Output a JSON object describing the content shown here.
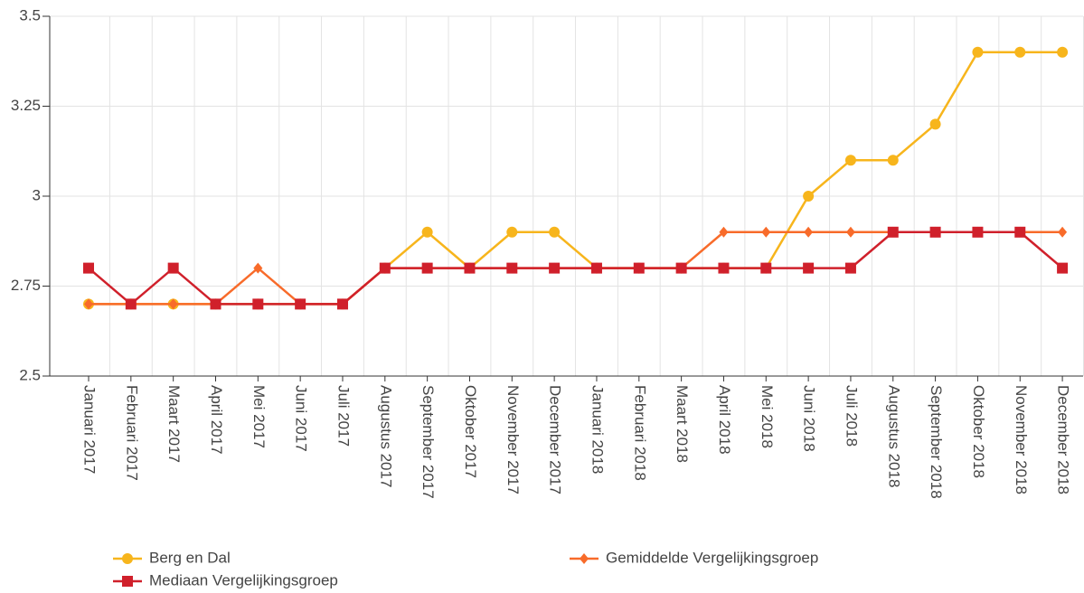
{
  "chart_data": {
    "type": "line",
    "categories": [
      "Januari 2017",
      "Februari 2017",
      "Maart 2017",
      "April 2017",
      "Mei 2017",
      "Juni 2017",
      "Juli 2017",
      "Augustus 2017",
      "September 2017",
      "Oktober 2017",
      "November 2017",
      "December 2017",
      "Januari 2018",
      "Februari 2018",
      "Maart 2018",
      "April 2018",
      "Mei 2018",
      "Juni 2018",
      "Juli 2018",
      "Augustus 2018",
      "September 2018",
      "Oktober 2018",
      "November 2018",
      "December 2018"
    ],
    "series": [
      {
        "name": "Berg en Dal",
        "color": "#f7b51c",
        "marker": "circle",
        "values": [
          2.7,
          2.7,
          2.7,
          2.7,
          2.7,
          2.7,
          2.7,
          2.8,
          2.9,
          2.8,
          2.9,
          2.9,
          2.8,
          2.8,
          2.8,
          2.8,
          2.8,
          3.0,
          3.1,
          3.1,
          3.2,
          3.4,
          3.4,
          3.4
        ]
      },
      {
        "name": "Gemiddelde Vergelijkingsgroep",
        "color": "#f86b2a",
        "marker": "diamond",
        "values": [
          2.7,
          2.7,
          2.7,
          2.7,
          2.8,
          2.7,
          2.7,
          2.8,
          2.8,
          2.8,
          2.8,
          2.8,
          2.8,
          2.8,
          2.8,
          2.9,
          2.9,
          2.9,
          2.9,
          2.9,
          2.9,
          2.9,
          2.9,
          2.9
        ]
      },
      {
        "name": "Mediaan Vergelijkingsgroep",
        "color": "#d0202b",
        "marker": "square",
        "values": [
          2.8,
          2.7,
          2.8,
          2.7,
          2.7,
          2.7,
          2.7,
          2.8,
          2.8,
          2.8,
          2.8,
          2.8,
          2.8,
          2.8,
          2.8,
          2.8,
          2.8,
          2.8,
          2.8,
          2.9,
          2.9,
          2.9,
          2.9,
          2.8
        ]
      }
    ],
    "ylim": [
      2.5,
      3.5
    ],
    "yticks": [
      2.5,
      2.75,
      3,
      3.25,
      3.5
    ],
    "grid": true
  }
}
